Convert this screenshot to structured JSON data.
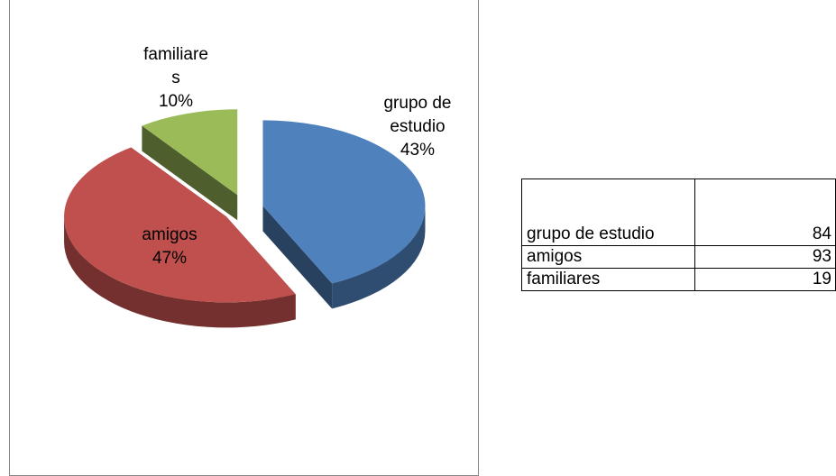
{
  "chart_data": {
    "type": "pie",
    "categories": [
      "grupo de estudio",
      "amigos",
      "familiares"
    ],
    "values": [
      43,
      47,
      10
    ],
    "value_labels": [
      "43%",
      "47%",
      "10%"
    ],
    "colors": [
      "#4f81bd",
      "#c0504d",
      "#9bbb59"
    ]
  },
  "table": {
    "rows": [
      [
        "grupo de estudio",
        84
      ],
      [
        "amigos",
        93
      ],
      [
        "familiares",
        19
      ]
    ]
  }
}
